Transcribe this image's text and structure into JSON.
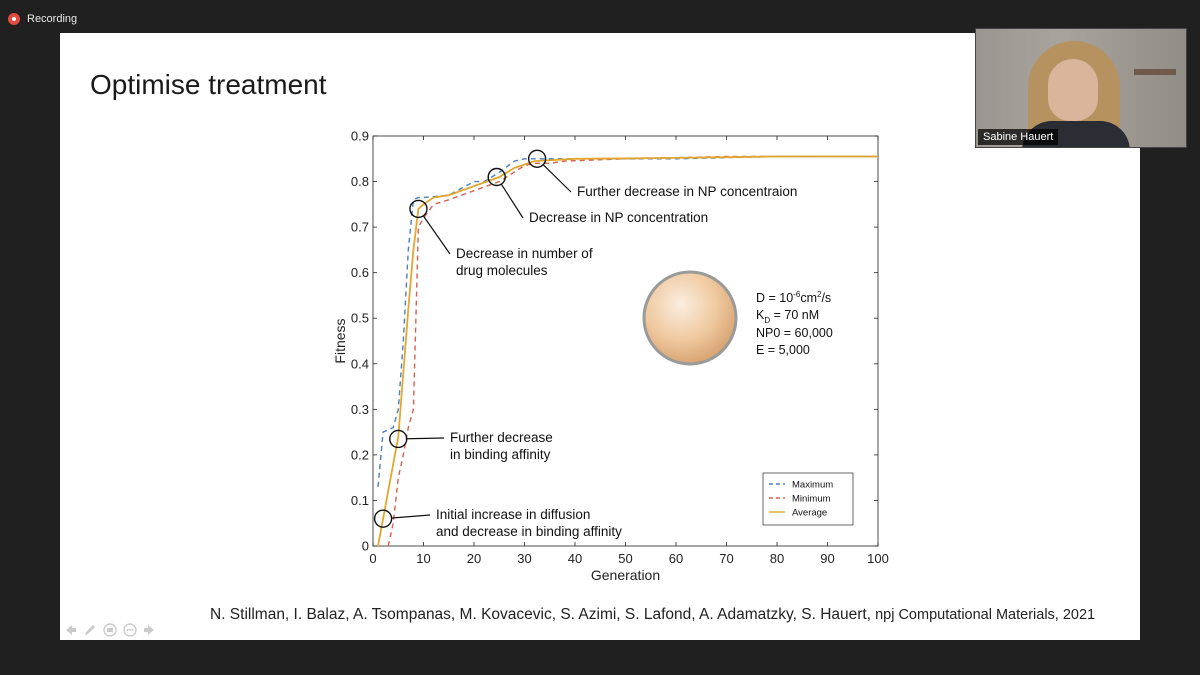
{
  "recording": {
    "label": "Recording"
  },
  "slide": {
    "title": "Optimise treatment",
    "citation_authors": "N. Stillman, I. Balaz, A. Tsompanas, M. Kovacevic, S. Azimi, S. Lafond, A. Adamatzky, S. Hauert,",
    "citation_journal": " npj Computational Materials, 2021"
  },
  "participant": {
    "name": "Sabine Hauert"
  },
  "toolbar": {
    "icons": [
      "arrow-left-icon",
      "pen-icon",
      "slide-sorter-icon",
      "more-icon",
      "arrow-right-icon"
    ]
  },
  "colors": {
    "maximum": "#4a7fc0",
    "minimum": "#d6604d",
    "average": "#e2a72e"
  },
  "chart_data": {
    "type": "line",
    "xlabel": "Generation",
    "ylabel": "Fitness",
    "xlim": [
      0,
      100
    ],
    "ylim": [
      0,
      0.9
    ],
    "x_ticks": [
      "0",
      "10",
      "20",
      "30",
      "40",
      "50",
      "60",
      "70",
      "80",
      "90",
      "100"
    ],
    "y_ticks": [
      "0",
      "0.1",
      "0.2",
      "0.3",
      "0.4",
      "0.5",
      "0.6",
      "0.7",
      "0.8",
      "0.9"
    ],
    "series": [
      {
        "name": "Maximum",
        "style": "dashed",
        "x": [
          1,
          2,
          4,
          5,
          6,
          7,
          8,
          9,
          10,
          15,
          20,
          22,
          25,
          28,
          30,
          32,
          40,
          60,
          80,
          100
        ],
        "y": [
          0.13,
          0.25,
          0.26,
          0.3,
          0.45,
          0.65,
          0.76,
          0.765,
          0.765,
          0.77,
          0.8,
          0.8,
          0.82,
          0.845,
          0.85,
          0.85,
          0.85,
          0.85,
          0.855,
          0.855
        ]
      },
      {
        "name": "Minimum",
        "style": "dashed",
        "x": [
          3,
          4,
          5,
          6,
          7,
          8,
          9,
          10,
          12,
          15,
          20,
          25,
          30,
          32,
          35,
          38,
          50,
          70,
          100
        ],
        "y": [
          0.0,
          0.05,
          0.15,
          0.2,
          0.26,
          0.3,
          0.7,
          0.72,
          0.75,
          0.76,
          0.78,
          0.8,
          0.835,
          0.84,
          0.84,
          0.845,
          0.85,
          0.855,
          0.855
        ]
      },
      {
        "name": "Average",
        "style": "solid",
        "x": [
          1,
          2,
          4,
          5,
          6,
          7,
          8,
          9,
          10,
          12,
          15,
          20,
          25,
          28,
          32,
          40,
          60,
          80,
          100
        ],
        "y": [
          0.0,
          0.06,
          0.18,
          0.24,
          0.38,
          0.52,
          0.65,
          0.74,
          0.75,
          0.765,
          0.77,
          0.79,
          0.81,
          0.83,
          0.845,
          0.85,
          0.852,
          0.855,
          0.855
        ]
      }
    ],
    "annotations": [
      {
        "x": 2,
        "y": 0.06,
        "lines": [
          "Initial increase in diffusion",
          "and decrease in binding affinity"
        ]
      },
      {
        "x": 5,
        "y": 0.235,
        "lines": [
          "Further decrease",
          "in binding affinity"
        ]
      },
      {
        "x": 9,
        "y": 0.74,
        "lines": [
          "Decrease in number of",
          "drug molecules"
        ]
      },
      {
        "x": 24.5,
        "y": 0.81,
        "lines": [
          "Decrease in NP concentration"
        ]
      },
      {
        "x": 32.5,
        "y": 0.85,
        "lines": [
          "Further decrease in NP concentraion"
        ]
      }
    ],
    "inset_params": [
      "D = 10^-6 cm^2/s",
      "K_D = 70 nM",
      "NP0 = 60,000",
      "E = 5,000"
    ],
    "legend": [
      "Maximum",
      "Minimum",
      "Average"
    ],
    "legend_position": "bottom-right",
    "grid": false
  }
}
